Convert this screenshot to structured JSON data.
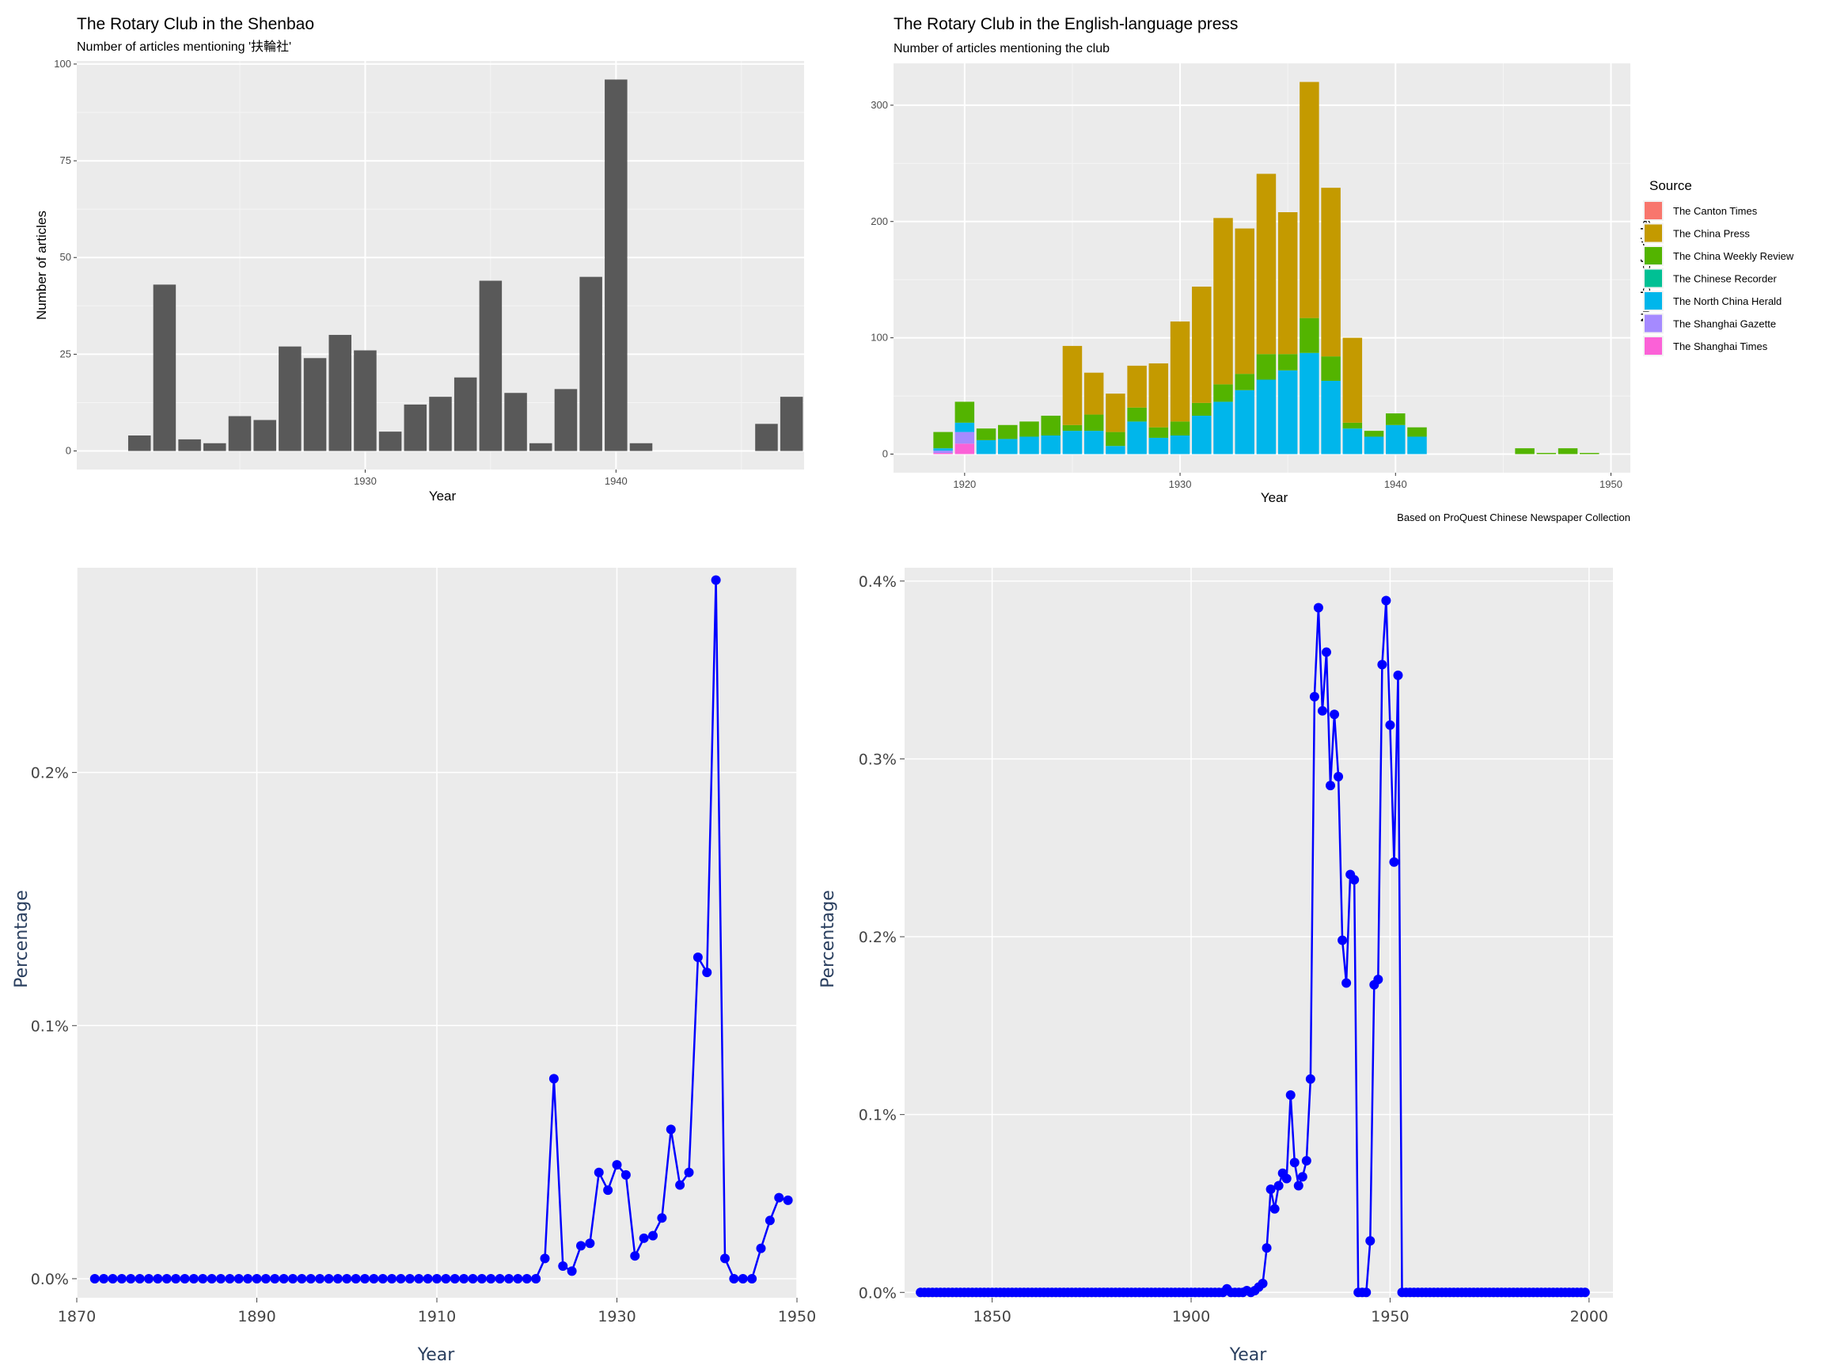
{
  "chart_data": [
    {
      "type": "bar",
      "title": "The Rotary Club in the Shenbao",
      "subtitle": "Number of articles mentioning '扶輪社'",
      "xlabel": "Year",
      "ylabel": "Number of articles",
      "xlim": [
        1918.5,
        1947.5
      ],
      "ylim": [
        -4.8,
        100.8
      ],
      "xticks": [
        1930,
        1940
      ],
      "yticks": [
        0,
        25,
        50,
        75,
        100
      ],
      "bar_color": "#595959",
      "background": "#ebebeb",
      "x": [
        1921,
        1922,
        1923,
        1924,
        1925,
        1926,
        1927,
        1928,
        1929,
        1930,
        1931,
        1932,
        1933,
        1934,
        1935,
        1936,
        1937,
        1938,
        1939,
        1940,
        1941,
        1942,
        1946,
        1947
      ],
      "values": [
        4,
        43,
        3,
        2,
        9,
        8,
        27,
        24,
        30,
        26,
        5,
        12,
        14,
        19,
        44,
        15,
        2,
        16,
        45,
        96,
        2,
        0,
        7,
        14
      ]
    },
    {
      "type": "bar",
      "stacked": true,
      "title": "The Rotary Club in the English-language press",
      "subtitle": "Number of articles mentioning the club",
      "xlabel": "Year",
      "ylabel": "Number of articles",
      "caption": "Based on ProQuest Chinese Newspaper Collection",
      "legend_title": "Source",
      "legend_position": "right",
      "background": "#ebebeb",
      "xlim": [
        1916.7,
        1950.9
      ],
      "ylim": [
        -16,
        336
      ],
      "xticks": [
        1920,
        1930,
        1940,
        1950
      ],
      "yticks": [
        0,
        100,
        200,
        300
      ],
      "x": [
        1919,
        1920,
        1921,
        1922,
        1923,
        1924,
        1925,
        1926,
        1927,
        1928,
        1929,
        1930,
        1931,
        1932,
        1933,
        1934,
        1935,
        1936,
        1937,
        1938,
        1939,
        1940,
        1941,
        1946,
        1947,
        1948,
        1949
      ],
      "series": [
        {
          "name": "The Canton Times",
          "color": "#f8766d",
          "values": [
            0,
            0,
            0,
            0,
            0,
            0,
            0,
            0,
            0,
            0,
            0,
            0,
            0,
            0,
            0,
            0,
            0,
            0,
            0,
            0,
            0,
            0,
            0,
            0,
            0,
            0,
            0
          ]
        },
        {
          "name": "The China Press",
          "color": "#c49a00",
          "values": [
            0,
            0,
            0,
            0,
            0,
            0,
            68,
            36,
            33,
            36,
            55,
            86,
            100,
            143,
            125,
            155,
            122,
            203,
            145,
            73,
            0,
            0,
            0,
            0,
            0,
            0,
            0
          ]
        },
        {
          "name": "The China Weekly Review",
          "color": "#53b400",
          "values": [
            14,
            18,
            10,
            12,
            13,
            17,
            5,
            14,
            12,
            12,
            9,
            12,
            11,
            15,
            14,
            22,
            14,
            30,
            21,
            5,
            5,
            10,
            8,
            5,
            1,
            5,
            1
          ]
        },
        {
          "name": "The Chinese Recorder",
          "color": "#00c094",
          "values": [
            0,
            0,
            0,
            0,
            0,
            0,
            0,
            0,
            0,
            0,
            0,
            0,
            0,
            0,
            0,
            0,
            0,
            0,
            0,
            0,
            0,
            0,
            0,
            0,
            0,
            0,
            0
          ]
        },
        {
          "name": "The North China Herald",
          "color": "#00b6eb",
          "values": [
            2,
            8,
            12,
            13,
            15,
            16,
            20,
            20,
            7,
            28,
            14,
            16,
            33,
            45,
            55,
            64,
            72,
            87,
            63,
            22,
            15,
            25,
            15,
            0,
            0,
            0,
            0
          ]
        },
        {
          "name": "The Shanghai Gazette",
          "color": "#a58aff",
          "values": [
            2,
            10,
            0,
            0,
            0,
            0,
            0,
            0,
            0,
            0,
            0,
            0,
            0,
            0,
            0,
            0,
            0,
            0,
            0,
            0,
            0,
            0,
            0,
            0,
            0,
            0,
            0
          ]
        },
        {
          "name": "The Shanghai Times",
          "color": "#fb61d7",
          "values": [
            1,
            9,
            0,
            0,
            0,
            0,
            0,
            0,
            0,
            0,
            0,
            0,
            0,
            0,
            0,
            0,
            0,
            0,
            0,
            0,
            0,
            0,
            0,
            0,
            0,
            0,
            0
          ]
        }
      ]
    },
    {
      "type": "line",
      "markers": true,
      "xlabel": "Year",
      "ylabel": "Percentage",
      "line_color": "#0000ff",
      "background": "#ebebeb",
      "xlim": [
        1870,
        1950
      ],
      "ylim": [
        -7.52e-05,
        0.002809
      ],
      "xticks": [
        1870,
        1890,
        1910,
        1930,
        1950
      ],
      "ytick_values": [
        0,
        0.001,
        0.002
      ],
      "ytick_labels": [
        "0.0%",
        "0.1%",
        "0.2%"
      ],
      "x_start": 1872,
      "values": [
        0,
        0,
        0,
        0,
        0,
        0,
        0,
        0,
        0,
        0,
        0,
        0,
        0,
        0,
        0,
        0,
        0,
        0,
        0,
        0,
        0,
        0,
        0,
        0,
        0,
        0,
        0,
        0,
        0,
        0,
        0,
        0,
        0,
        0,
        0,
        0,
        0,
        0,
        0,
        0,
        0,
        0,
        0,
        0,
        0,
        0,
        0,
        0,
        0,
        0,
        8e-05,
        0.00079,
        5e-05,
        3e-05,
        0.00013,
        0.00014,
        0.00042,
        0.00035,
        0.00045,
        0.00041,
        9e-05,
        0.00016,
        0.00017,
        0.00024,
        0.00059,
        0.00037,
        0.00042,
        0.00127,
        0.00121,
        0.00276,
        8e-05,
        0,
        0,
        0,
        0.00012,
        0.00023,
        0.00032,
        0.00031
      ]
    },
    {
      "type": "line",
      "markers": true,
      "xlabel": "Year",
      "ylabel": "Percentage",
      "line_color": "#0000ff",
      "background": "#ebebeb",
      "xlim": [
        1828,
        2006
      ],
      "ylim": [
        -3e-05,
        0.004075
      ],
      "xticks": [
        1850,
        1900,
        1950,
        2000
      ],
      "ytick_values": [
        0,
        0.001,
        0.002,
        0.003,
        0.004
      ],
      "ytick_labels": [
        "0.0%",
        "0.1%",
        "0.2%",
        "0.3%",
        "0.4%"
      ],
      "x_start": 1832,
      "x_end": 1999,
      "points": [
        [
          1909,
          2e-05
        ],
        [
          1910,
          0
        ],
        [
          1911,
          0
        ],
        [
          1912,
          0
        ],
        [
          1913,
          0
        ],
        [
          1914,
          1e-05
        ],
        [
          1915,
          0
        ],
        [
          1916,
          1e-05
        ],
        [
          1917,
          3e-05
        ],
        [
          1918,
          5e-05
        ],
        [
          1919,
          0.00025
        ],
        [
          1920,
          0.00058
        ],
        [
          1921,
          0.00047
        ],
        [
          1922,
          0.0006
        ],
        [
          1923,
          0.00067
        ],
        [
          1924,
          0.00064
        ],
        [
          1925,
          0.00111
        ],
        [
          1926,
          0.00073
        ],
        [
          1927,
          0.0006
        ],
        [
          1928,
          0.00065
        ],
        [
          1929,
          0.00074
        ],
        [
          1930,
          0.0012
        ],
        [
          1931,
          0.00335
        ],
        [
          1932,
          0.00385
        ],
        [
          1933,
          0.00327
        ],
        [
          1934,
          0.0036
        ],
        [
          1935,
          0.00285
        ],
        [
          1936,
          0.00325
        ],
        [
          1937,
          0.0029
        ],
        [
          1938,
          0.00198
        ],
        [
          1939,
          0.00174
        ],
        [
          1940,
          0.00235
        ],
        [
          1941,
          0.00232
        ],
        [
          1945,
          0.00029
        ],
        [
          1946,
          0.00173
        ],
        [
          1947,
          0.00176
        ],
        [
          1948,
          0.00353
        ],
        [
          1949,
          0.00389
        ],
        [
          1950,
          0.00319
        ],
        [
          1951,
          0.00242
        ],
        [
          1952,
          0.00347
        ]
      ]
    }
  ]
}
